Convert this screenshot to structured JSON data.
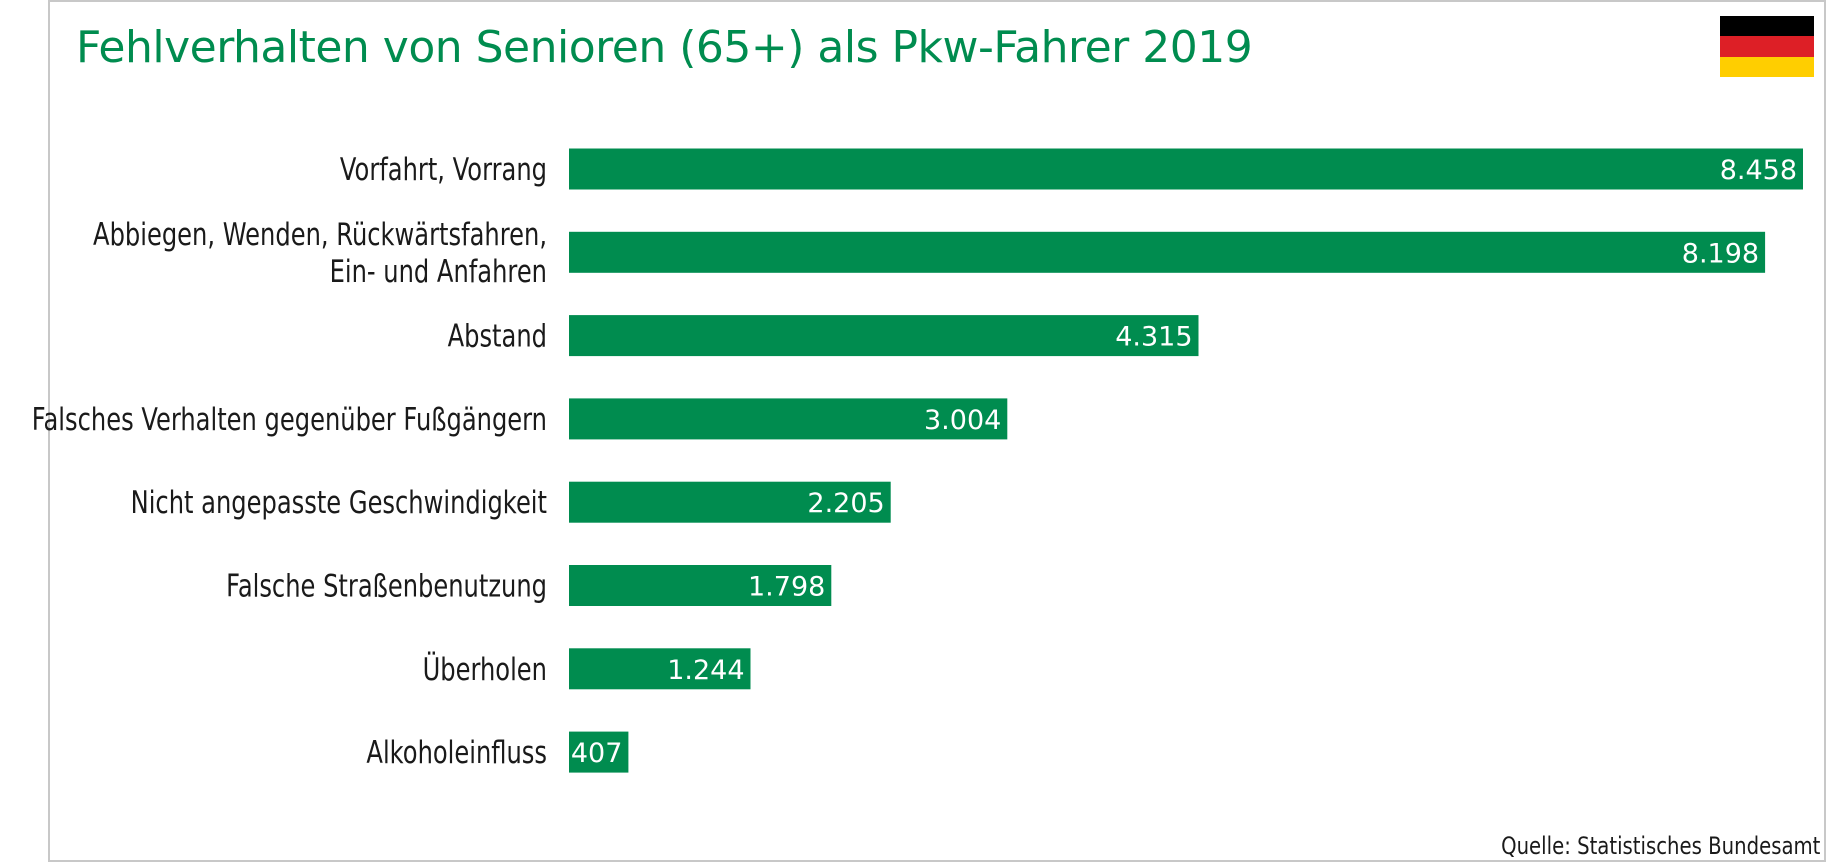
{
  "colors": {
    "bar": "#008c4f",
    "title": "#008c4f",
    "flag": [
      "#000000",
      "#dd1f26",
      "#ffce00"
    ]
  },
  "source": "Quelle: Statistisches Bundesamt",
  "chart_data": {
    "type": "bar",
    "orientation": "horizontal",
    "title": "Fehlverhalten von Senioren (65+) als Pkw-Fahrer 2019",
    "categories": [
      [
        "Vorfahrt, Vorrang"
      ],
      [
        "Abbiegen, Wenden, Rückwärtsfahren,",
        "Ein- und Anfahren"
      ],
      [
        "Abstand"
      ],
      [
        "Falsches Verhalten gegenüber Fußgängern"
      ],
      [
        "Nicht angepasste Geschwindigkeit"
      ],
      [
        "Falsche Straßenbenutzung"
      ],
      [
        "Überholen"
      ],
      [
        "Alkoholeinfluss"
      ]
    ],
    "values": [
      8458,
      8198,
      4315,
      3004,
      2205,
      1798,
      1244,
      407
    ],
    "value_labels": [
      "8.458",
      "8.198",
      "4.315",
      "3.004",
      "2.205",
      "1.798",
      "1.244",
      "407"
    ],
    "xlim": [
      0,
      8458
    ],
    "grid": false,
    "legend": "none"
  }
}
